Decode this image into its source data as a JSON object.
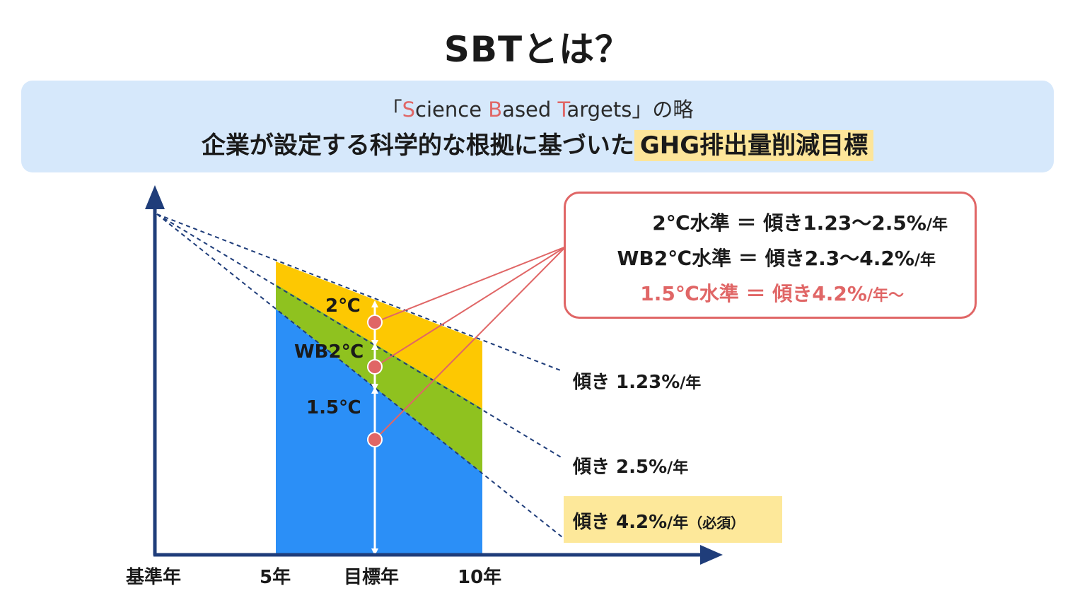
{
  "title": "SBTとは？",
  "banner": {
    "subtitle_open": "「",
    "sub_s": "S",
    "sub_cience": "cience ",
    "sub_b": "B",
    "sub_ased": "ased ",
    "sub_t": "T",
    "sub_argets": "argets",
    "subtitle_close": "」の略",
    "main_prefix": "企業が設定する科学的な根拠に基づいた",
    "main_highlight": "GHG排出量削減目標"
  },
  "axis": {
    "x_labels": [
      "基準年",
      "5年",
      "目標年",
      "10年"
    ]
  },
  "stages": [
    "2℃",
    "WB2℃",
    "1.5℃"
  ],
  "legend": {
    "rows": [
      {
        "label": "2℃水準",
        "eq": "＝",
        "value": "傾き1.23〜2.5%",
        "unit": "/年"
      },
      {
        "label": "WB2℃水準",
        "eq": "＝",
        "value": "傾き2.3〜4.2%",
        "unit": "/年"
      },
      {
        "label": "1.5℃水準",
        "eq": "＝",
        "value": "傾き4.2%",
        "unit": "/年〜"
      }
    ]
  },
  "slopes": [
    {
      "value": "傾き 1.23%",
      "unit": "/年"
    },
    {
      "value": "傾き 2.5%",
      "unit": "/年"
    },
    {
      "value": "傾き 4.2%",
      "unit": "/年",
      "note": "（必須）"
    }
  ],
  "colors": {
    "axis": "#1f3d7a",
    "band_2c": "#fdc802",
    "band_wb2c": "#8fc21f",
    "band_15c": "#2b8ff7",
    "accent_red": "#e06666",
    "banner_bg": "#d6e8fb",
    "highlight": "#fde59a"
  }
}
